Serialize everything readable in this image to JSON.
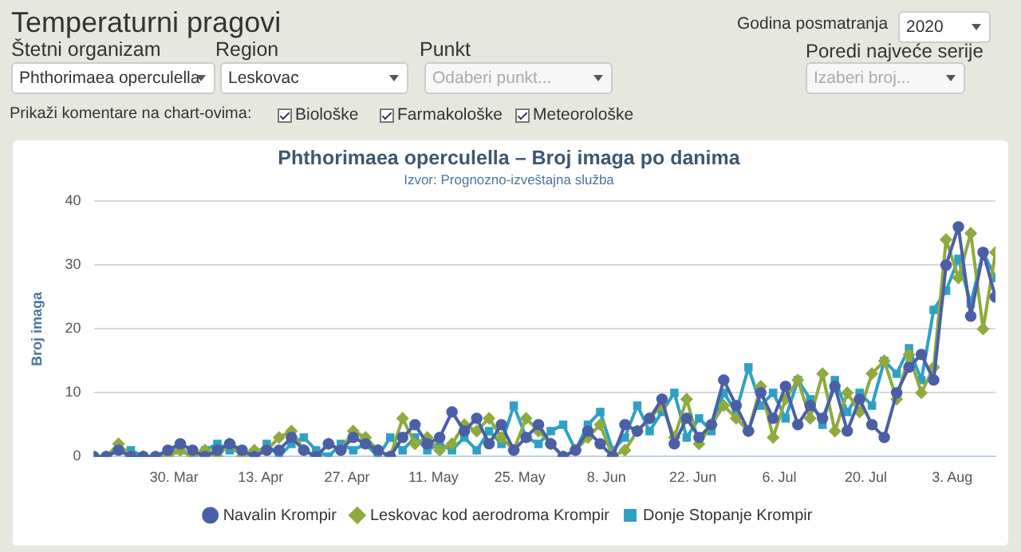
{
  "chart_data": {
    "type": "line",
    "title": "Phthorimaea operculella – Broj imaga po danima",
    "subtitle": "Izvor: Prognozno-izveštajna služba",
    "ylabel": "Broj imaga",
    "annotations": [
      "Temperaturni pragovi",
      "Štetni organizam",
      "Phthorimaea operculella",
      "Region",
      "Leskovac",
      "Punkt",
      "Odaberi punkt...",
      "Godina posmatranja",
      "2020",
      "Poredi najveće serije",
      "Izaberi broj...",
      "Prikaži komentare na chart-ovima:",
      "Biološke",
      "Farmakološke",
      "Meteorološke"
    ],
    "x": [
      "2020-03-17",
      "2020-03-19",
      "2020-03-21",
      "2020-03-23",
      "2020-03-25",
      "2020-03-27",
      "2020-03-29",
      "2020-03-31",
      "2020-04-02",
      "2020-04-04",
      "2020-04-06",
      "2020-04-08",
      "2020-04-10",
      "2020-04-12",
      "2020-04-14",
      "2020-04-16",
      "2020-04-18",
      "2020-04-20",
      "2020-04-22",
      "2020-04-24",
      "2020-04-26",
      "2020-04-28",
      "2020-04-30",
      "2020-05-02",
      "2020-05-04",
      "2020-05-06",
      "2020-05-08",
      "2020-05-10",
      "2020-05-12",
      "2020-05-14",
      "2020-05-16",
      "2020-05-18",
      "2020-05-20",
      "2020-05-22",
      "2020-05-24",
      "2020-05-26",
      "2020-05-28",
      "2020-05-30",
      "2020-06-01",
      "2020-06-03",
      "2020-06-05",
      "2020-06-07",
      "2020-06-09",
      "2020-06-11",
      "2020-06-13",
      "2020-06-15",
      "2020-06-17",
      "2020-06-19",
      "2020-06-21",
      "2020-06-23",
      "2020-06-25",
      "2020-06-27",
      "2020-06-29",
      "2020-07-01",
      "2020-07-03",
      "2020-07-05",
      "2020-07-07",
      "2020-07-09",
      "2020-07-11",
      "2020-07-13",
      "2020-07-15",
      "2020-07-17",
      "2020-07-19",
      "2020-07-21",
      "2020-07-23",
      "2020-07-25",
      "2020-07-27",
      "2020-07-29",
      "2020-07-31",
      "2020-08-02",
      "2020-08-04",
      "2020-08-06",
      "2020-08-08",
      "2020-08-10"
    ],
    "series": [
      {
        "name": "Navalin Krompir",
        "color": "#4a5fa6",
        "marker": "circle",
        "values": [
          0,
          0,
          1,
          0,
          0,
          0,
          1,
          2,
          1,
          0,
          1,
          2,
          1,
          0,
          1,
          1,
          3,
          1,
          0,
          2,
          1,
          3,
          2,
          1,
          0,
          3,
          5,
          2,
          3,
          7,
          4,
          6,
          2,
          5,
          1,
          3,
          5,
          2,
          0,
          1,
          4,
          2,
          0,
          5,
          4,
          6,
          9,
          2,
          6,
          3,
          5,
          12,
          8,
          4,
          10,
          6,
          11,
          5,
          8,
          6,
          11,
          4,
          9,
          5,
          3,
          10,
          14,
          16,
          12,
          30,
          36,
          22,
          32,
          25
        ]
      },
      {
        "name": "Leskovac kod aerodroma Krompir",
        "color": "#8faa3e",
        "marker": "diamond",
        "values": [
          0,
          0,
          2,
          0,
          0,
          0,
          0,
          1,
          0,
          1,
          0,
          2,
          0,
          1,
          1,
          3,
          4,
          1,
          0,
          2,
          1,
          4,
          3,
          1,
          0,
          6,
          2,
          3,
          1,
          2,
          5,
          4,
          6,
          3,
          1,
          6,
          4,
          2,
          0,
          1,
          3,
          5,
          0,
          1,
          4,
          6,
          8,
          3,
          9,
          2,
          5,
          8,
          6,
          4,
          11,
          3,
          9,
          12,
          6,
          13,
          4,
          10,
          7,
          13,
          15,
          9,
          16,
          10,
          14,
          34,
          28,
          35,
          20,
          32
        ]
      },
      {
        "name": "Donje Stopanje Krompir",
        "color": "#2fa0c4",
        "marker": "square",
        "values": [
          0,
          0,
          1,
          1,
          0,
          0,
          1,
          1,
          0,
          1,
          2,
          1,
          1,
          0,
          2,
          0,
          2,
          3,
          1,
          0,
          2,
          1,
          2,
          0,
          3,
          1,
          3,
          1,
          2,
          1,
          3,
          1,
          4,
          2,
          8,
          3,
          2,
          4,
          5,
          1,
          5,
          7,
          1,
          3,
          8,
          4,
          7,
          10,
          3,
          6,
          4,
          10,
          7,
          14,
          8,
          10,
          6,
          12,
          9,
          5,
          12,
          7,
          10,
          8,
          15,
          13,
          17,
          12,
          23,
          26,
          31,
          24,
          32,
          28
        ]
      }
    ],
    "xlim": [
      "2020-03-17",
      "2020-08-10"
    ],
    "xticks": [
      {
        "value": "2020-03-30",
        "label": "30. Mar"
      },
      {
        "value": "2020-04-13",
        "label": "13. Apr"
      },
      {
        "value": "2020-04-27",
        "label": "27. Apr"
      },
      {
        "value": "2020-05-11",
        "label": "11. May"
      },
      {
        "value": "2020-05-25",
        "label": "25. May"
      },
      {
        "value": "2020-06-08",
        "label": "8. Jun"
      },
      {
        "value": "2020-06-22",
        "label": "22. Jun"
      },
      {
        "value": "2020-07-06",
        "label": "6. Jul"
      },
      {
        "value": "2020-07-20",
        "label": "20. Jul"
      },
      {
        "value": "2020-08-03",
        "label": "3. Aug"
      }
    ],
    "ylim": [
      0,
      40
    ],
    "yticks": [
      0,
      10,
      20,
      30,
      40
    ],
    "grid": "y",
    "legend": "bottom",
    "line_style": "solid"
  }
}
